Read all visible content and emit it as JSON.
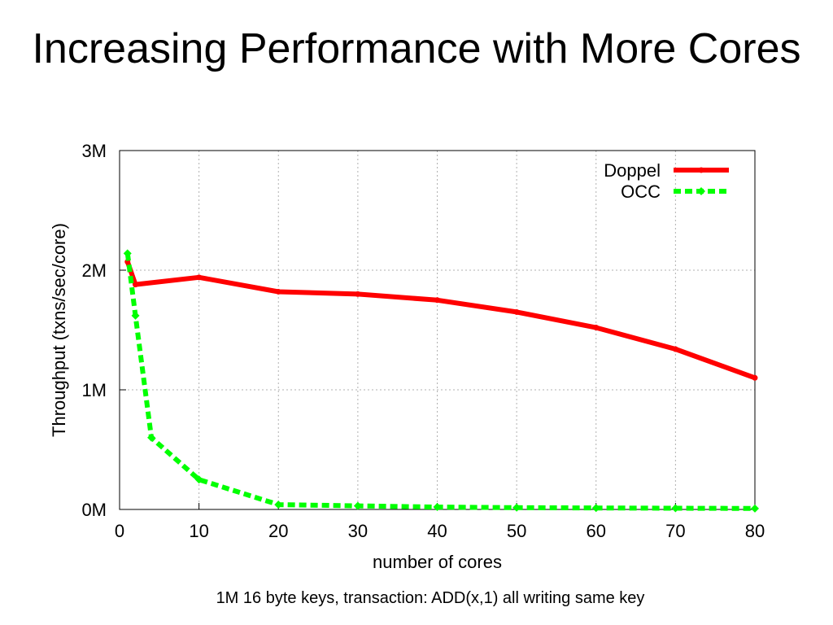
{
  "slide": {
    "title": "Increasing Performance with More Cores",
    "caption": "1M 16 byte keys, transaction: ADD(x,1) all writing same key"
  },
  "chart_data": {
    "type": "line",
    "xlabel": "number of cores",
    "ylabel": "Throughput (txns/sec/core)",
    "xlim": [
      0,
      80
    ],
    "ylim": [
      0,
      3000000
    ],
    "x_ticks": [
      0,
      10,
      20,
      30,
      40,
      50,
      60,
      70,
      80
    ],
    "x_tick_labels": [
      "0",
      "10",
      "20",
      "30",
      "40",
      "50",
      "60",
      "70",
      "80"
    ],
    "y_ticks": [
      0,
      1000000,
      2000000,
      3000000
    ],
    "y_tick_labels": [
      "0M",
      "1M",
      "2M",
      "3M"
    ],
    "grid": true,
    "legend_position": "top-right",
    "series": [
      {
        "name": "Doppel",
        "color": "#ff0000",
        "style": "solid",
        "x": [
          1,
          2,
          10,
          20,
          30,
          40,
          50,
          60,
          70,
          80
        ],
        "y": [
          2070000,
          1880000,
          1940000,
          1820000,
          1800000,
          1750000,
          1650000,
          1520000,
          1340000,
          1100000
        ]
      },
      {
        "name": "OCC",
        "color": "#00ff00",
        "style": "dashed",
        "x": [
          1,
          2,
          4,
          10,
          20,
          30,
          40,
          50,
          60,
          70,
          80
        ],
        "y": [
          2140000,
          1620000,
          600000,
          250000,
          40000,
          30000,
          20000,
          15000,
          12000,
          10000,
          8000
        ]
      }
    ]
  }
}
